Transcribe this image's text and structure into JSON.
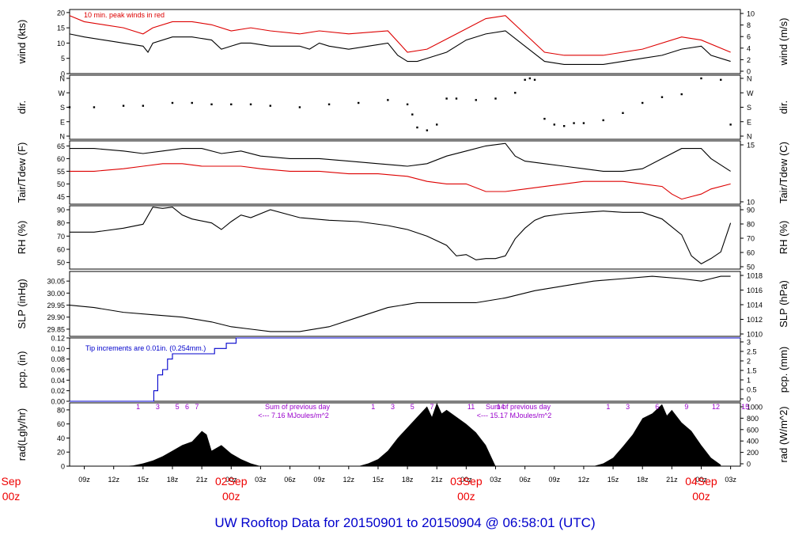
{
  "footer_title": "UW Rooftop Data for 20150901  to  20150904 @ 06:58:01  (UTC)",
  "colors": {
    "axis": "#000000",
    "red": "#dd0000",
    "blue": "#0000cc",
    "purple": "#9900cc",
    "date": "#ee0000"
  },
  "chart_data": [
    {
      "type": "line",
      "id": "wind",
      "ylabel": "wind (kts)",
      "ylabel_right": "wind (m/s)",
      "ylim": [
        0,
        21
      ],
      "yticks": [
        "0",
        "5",
        "10",
        "15",
        "20"
      ],
      "yticks_right": [
        "0",
        "2",
        "4",
        "6",
        "8",
        "10"
      ],
      "annotation": "10 min. peak winds in red",
      "series": [
        {
          "color": "#000000",
          "x": [
            7.5,
            9,
            11,
            13,
            15,
            15.5,
            16,
            18,
            20,
            22,
            23,
            24,
            25,
            26,
            28,
            31,
            32,
            33,
            34,
            36,
            38,
            40,
            41,
            42,
            43,
            44,
            46,
            47.5,
            48,
            50,
            52,
            54,
            56,
            58,
            60,
            62,
            64,
            66,
            68,
            70,
            72,
            73,
            75
          ],
          "y": [
            13,
            12,
            11,
            10,
            9,
            7,
            10,
            12,
            12,
            11,
            8,
            9,
            10,
            10,
            9,
            9,
            8,
            10,
            9,
            8,
            9,
            10,
            6,
            4,
            4,
            5,
            7,
            10,
            11,
            13,
            14,
            9,
            4,
            3,
            3,
            3,
            4,
            5,
            6,
            8,
            9,
            6,
            4
          ]
        },
        {
          "color": "#dd0000",
          "x": [
            7.5,
            9,
            11,
            13,
            15,
            16,
            18,
            20,
            22,
            24,
            26,
            28,
            31,
            33,
            36,
            40,
            42,
            44,
            47,
            50,
            52,
            54,
            56,
            58,
            62,
            66,
            70,
            72,
            75
          ],
          "y": [
            19,
            17,
            16,
            15,
            13,
            15,
            17,
            17,
            16,
            14,
            15,
            14,
            13,
            14,
            13,
            14,
            7,
            8,
            13,
            18,
            19,
            13,
            7,
            6,
            6,
            8,
            12,
            11,
            7
          ]
        }
      ]
    },
    {
      "type": "scatter",
      "id": "dir",
      "ylabel": "dir.",
      "ylabel_right": "dir.",
      "ylim": [
        0,
        4.4
      ],
      "yticks": [
        "N",
        "E",
        "S",
        "W",
        "N"
      ],
      "yticks_right": [
        "N",
        "E",
        "S",
        "W",
        "N"
      ],
      "series": [
        {
          "color": "#000000",
          "x": [
            7.5,
            10,
            13,
            15,
            18,
            20,
            22,
            24,
            26,
            28,
            31,
            34,
            37,
            40,
            42,
            42.5,
            43,
            44,
            45,
            46,
            47,
            49,
            51,
            53,
            54,
            54.5,
            55,
            56,
            57,
            58,
            59,
            60,
            62,
            64,
            66,
            68,
            70,
            72,
            74,
            75
          ],
          "y": [
            2.0,
            2.0,
            2.1,
            2.1,
            2.3,
            2.3,
            2.2,
            2.2,
            2.2,
            2.1,
            2.0,
            2.2,
            2.3,
            2.5,
            2.2,
            1.5,
            0.6,
            0.4,
            0.8,
            2.6,
            2.6,
            2.5,
            2.6,
            3.0,
            3.9,
            4.0,
            3.9,
            1.2,
            0.8,
            0.7,
            0.9,
            0.9,
            1.1,
            1.6,
            2.3,
            2.7,
            2.9,
            4.0,
            3.9,
            0.8
          ]
        }
      ]
    },
    {
      "type": "line",
      "id": "temp",
      "ylabel": "Tair/Tdew (F)",
      "ylabel_right": "Tair/Tdew (C)",
      "ylim": [
        42,
        67
      ],
      "yticks": [
        "45",
        "50",
        "55",
        "60",
        "65"
      ],
      "yticks_right": [
        "10",
        "15"
      ],
      "series": [
        {
          "name": "Tair",
          "color": "#000000",
          "x": [
            7.5,
            10,
            13,
            15,
            17,
            19,
            21,
            23,
            25,
            27,
            30,
            33,
            36,
            39,
            42,
            44,
            46,
            48,
            50,
            52,
            53,
            54,
            56,
            58,
            60,
            62,
            64,
            66,
            68,
            70,
            72,
            73,
            75
          ],
          "y": [
            64,
            64,
            63,
            62,
            63,
            64,
            64,
            62,
            63,
            61,
            60,
            60,
            59,
            58,
            57,
            58,
            61,
            63,
            65,
            66,
            61,
            59,
            58,
            57,
            56,
            55,
            55,
            56,
            60,
            64,
            64,
            60,
            55
          ]
        },
        {
          "name": "Tdew",
          "color": "#dd0000",
          "x": [
            7.5,
            10,
            13,
            15,
            17,
            19,
            21,
            23,
            25,
            27,
            30,
            33,
            36,
            39,
            42,
            44,
            46,
            48,
            50,
            52,
            54,
            56,
            58,
            60,
            62,
            64,
            66,
            68,
            69,
            70,
            71,
            72,
            73,
            75
          ],
          "y": [
            55,
            55,
            56,
            57,
            58,
            58,
            57,
            57,
            57,
            56,
            55,
            55,
            54,
            54,
            53,
            51,
            50,
            50,
            47,
            47,
            48,
            49,
            50,
            51,
            51,
            51,
            50,
            49,
            46,
            44,
            45,
            46,
            48,
            50
          ]
        }
      ]
    },
    {
      "type": "line",
      "id": "rh",
      "ylabel": "RH (%)",
      "ylabel_right": "RH (%)",
      "ylim": [
        45,
        93
      ],
      "yticks": [
        "50",
        "60",
        "70",
        "80",
        "90"
      ],
      "yticks_right": [
        "50",
        "60",
        "70",
        "80",
        "90"
      ],
      "series": [
        {
          "color": "#000000",
          "x": [
            7.5,
            10,
            13,
            15,
            16,
            17,
            18,
            19,
            20,
            22,
            23,
            24,
            25,
            26,
            28,
            31,
            34,
            37,
            40,
            42,
            44,
            46,
            47,
            48,
            49,
            50,
            51,
            52,
            53,
            54,
            55,
            56,
            58,
            60,
            62,
            64,
            66,
            68,
            70,
            71,
            72,
            73,
            74,
            75
          ],
          "y": [
            73,
            73,
            76,
            79,
            92,
            91,
            92,
            86,
            83,
            80,
            75,
            81,
            86,
            84,
            90,
            84,
            82,
            81,
            78,
            75,
            70,
            63,
            55,
            56,
            52,
            53,
            53,
            55,
            68,
            76,
            82,
            85,
            87,
            88,
            89,
            88,
            88,
            83,
            71,
            55,
            49,
            53,
            58,
            80
          ]
        }
      ]
    },
    {
      "type": "line",
      "id": "slp",
      "ylabel": "SLP (inHg)",
      "ylabel_right": "SLP (hPa)",
      "ylim": [
        29.82,
        30.09
      ],
      "yticks": [
        "29.85",
        "29.90",
        "29.95",
        "30.00",
        "30.05"
      ],
      "yticks_right": [
        "1010",
        "1012",
        "1014",
        "1016",
        "1018"
      ],
      "series": [
        {
          "color": "#000000",
          "x": [
            7.5,
            10,
            13,
            16,
            19,
            22,
            24,
            26,
            28,
            31,
            34,
            37,
            40,
            43,
            46,
            49,
            52,
            55,
            58,
            61,
            64,
            67,
            70,
            72,
            73,
            74,
            75
          ],
          "y": [
            29.95,
            29.94,
            29.92,
            29.91,
            29.9,
            29.88,
            29.86,
            29.85,
            29.84,
            29.84,
            29.86,
            29.9,
            29.94,
            29.96,
            29.96,
            29.96,
            29.98,
            30.01,
            30.03,
            30.05,
            30.06,
            30.07,
            30.06,
            30.05,
            30.06,
            30.07,
            30.07
          ]
        }
      ]
    },
    {
      "type": "line",
      "id": "pcp",
      "ylabel": "pcp. (in)",
      "ylabel_right": "pcp. (mm)",
      "ylim": [
        0,
        0.12
      ],
      "yticks": [
        "0.00",
        "0.02",
        "0.04",
        "0.06",
        "0.08",
        "0.10",
        "0.12"
      ],
      "yticks_right": [
        "0",
        "0.5",
        "1",
        "1.5",
        "2",
        "2.5",
        "3"
      ],
      "annotation": "Tip increments are 0.01in.  (0.254mm.)",
      "series": [
        {
          "color": "#0000cc",
          "x": [
            7.5,
            16.1,
            16.1,
            16.5,
            16.5,
            17,
            17,
            17.5,
            17.5,
            18,
            18,
            22.3,
            22.3,
            23.5,
            23.5,
            24.5,
            24.5,
            76
          ],
          "y": [
            0,
            0,
            0.02,
            0.02,
            0.05,
            0.05,
            0.06,
            0.06,
            0.08,
            0.08,
            0.09,
            0.09,
            0.1,
            0.1,
            0.11,
            0.11,
            0.12,
            0.12
          ]
        }
      ]
    },
    {
      "type": "area",
      "id": "rad",
      "ylabel": "rad(Lgly/hr)",
      "ylabel_right": "rad (W/m^2)",
      "ylim": [
        0,
        90
      ],
      "yticks": [
        "0",
        "20",
        "40",
        "60",
        "80"
      ],
      "yticks_right": [
        "0",
        "200",
        "400",
        "600",
        "800",
        "1000"
      ],
      "series": [
        {
          "color": "#000000",
          "x": [
            13,
            14,
            15,
            16,
            17,
            18,
            19,
            20,
            21,
            21.5,
            22,
            23,
            24,
            25,
            26,
            27,
            37,
            38,
            39,
            40,
            41,
            42,
            43,
            44,
            44.5,
            45,
            45.5,
            46,
            47,
            48,
            49,
            50,
            51,
            61,
            62,
            63,
            64,
            65,
            66,
            67,
            68,
            68.5,
            69,
            70,
            71,
            72,
            73,
            74
          ],
          "y": [
            0,
            1,
            4,
            8,
            14,
            22,
            30,
            35,
            50,
            45,
            22,
            30,
            18,
            10,
            4,
            0,
            0,
            4,
            10,
            22,
            40,
            55,
            70,
            85,
            70,
            90,
            75,
            80,
            70,
            60,
            48,
            30,
            0,
            0,
            4,
            12,
            28,
            45,
            68,
            75,
            88,
            72,
            80,
            62,
            50,
            30,
            12,
            2
          ]
        }
      ],
      "ticks_top": [
        [
          "1",
          "3",
          "5",
          "6",
          "7"
        ],
        [
          "1",
          "3",
          "5",
          "7",
          "11",
          "14"
        ],
        [
          "1",
          "3",
          "6",
          "9",
          "12",
          "15"
        ]
      ],
      "annotations": [
        [
          "Sum of previous day",
          "<--- 7.16 MJoules/m^2"
        ],
        [
          "Sum of previous day",
          "<--- 15.17 MJoules/m^2"
        ]
      ]
    }
  ],
  "x_axis": {
    "xlim": [
      7.5,
      76
    ],
    "ticks": [
      "09z",
      "12z",
      "15z",
      "18z",
      "21z",
      "00z",
      "03z",
      "06z",
      "09z",
      "12z",
      "15z",
      "18z",
      "21z",
      "00z",
      "03z",
      "06z",
      "09z",
      "12z",
      "15z",
      "18z",
      "21z",
      "00z",
      "03z",
      "06z"
    ],
    "tick_hours": [
      9,
      12,
      15,
      18,
      21,
      24,
      27,
      30,
      33,
      36,
      39,
      42,
      45,
      48,
      51,
      54,
      57,
      60,
      63,
      66,
      69,
      72,
      75,
      78
    ],
    "days": [
      {
        "date": "Sep",
        "z": "00z",
        "hour": 0
      },
      {
        "date": "02Sep",
        "z": "00z",
        "hour": 24
      },
      {
        "date": "03Sep",
        "z": "00z",
        "hour": 48
      },
      {
        "date": "04Sep",
        "z": "00z",
        "hour": 72
      }
    ]
  }
}
